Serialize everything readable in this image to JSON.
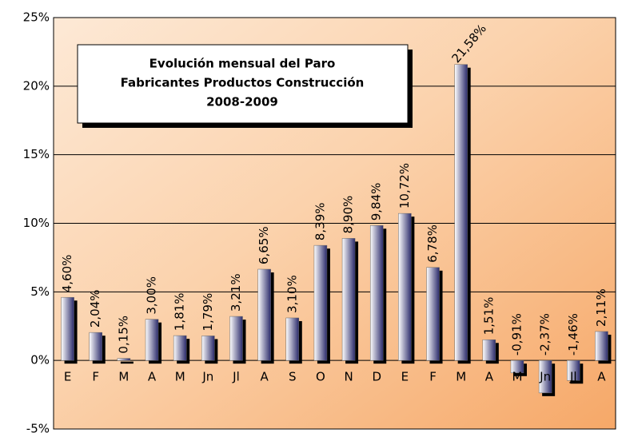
{
  "chart_data": {
    "type": "bar",
    "title": [
      "Evolución mensual del Paro",
      "Fabricantes Productos Construcción",
      "2008-2009"
    ],
    "categories": [
      "E",
      "F",
      "M",
      "A",
      "M",
      "Jn",
      "Jl",
      "A",
      "S",
      "O",
      "N",
      "D",
      "E",
      "F",
      "M",
      "A",
      "M",
      "Jn",
      "Jl",
      "A"
    ],
    "values": [
      4.6,
      2.04,
      0.15,
      3.0,
      1.81,
      1.79,
      3.21,
      6.65,
      3.1,
      8.39,
      8.9,
      9.84,
      10.72,
      6.78,
      21.58,
      1.51,
      -0.91,
      -2.37,
      -1.46,
      2.11
    ],
    "value_labels": [
      "4,60%",
      "2,04%",
      "0,15%",
      "3,00%",
      "1,81%",
      "1,79%",
      "3,21%",
      "6,65%",
      "3,10%",
      "8,39%",
      "8,90%",
      "9,84%",
      "10,72%",
      "6,78%",
      "21,58%",
      "1,51%",
      "-0,91%",
      "-2,37%",
      "-1,46%",
      "2,11%"
    ],
    "color": "#2b2b6b",
    "ylim": [
      -5,
      25
    ],
    "yticks": [
      {
        "value": -5,
        "label": "-5%"
      },
      {
        "value": 0,
        "label": "0%"
      },
      {
        "value": 5,
        "label": "5%"
      },
      {
        "value": 10,
        "label": "10%"
      },
      {
        "value": 15,
        "label": "15%"
      },
      {
        "value": 20,
        "label": "20%"
      },
      {
        "value": 25,
        "label": "25%"
      }
    ],
    "grid": true
  }
}
